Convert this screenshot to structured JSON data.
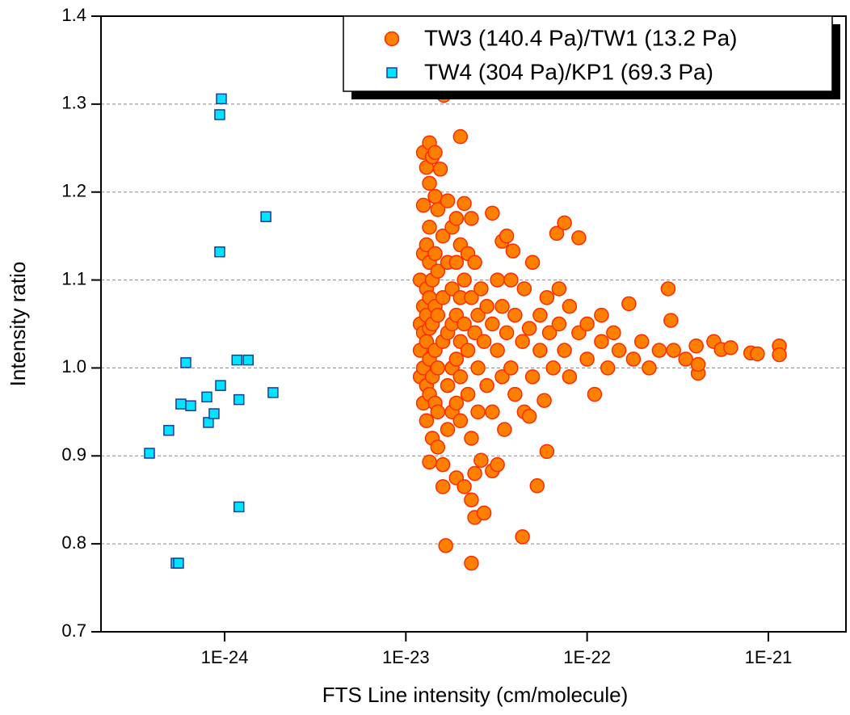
{
  "chart_data": {
    "type": "scatter",
    "xlabel": "FTS Line intensity (cm/molecule)",
    "ylabel": "Intensity ratio",
    "xscale": "log",
    "xlim": [
      2.08e-25,
      2.68e-21
    ],
    "ylim": [
      0.7,
      1.4
    ],
    "xticks": [
      {
        "value": 1e-24,
        "label": "1E-24"
      },
      {
        "value": 1e-23,
        "label": "1E-23"
      },
      {
        "value": 1e-22,
        "label": "1E-22"
      },
      {
        "value": 1e-21,
        "label": "1E-21"
      }
    ],
    "yticks": [
      0.7,
      0.8,
      0.9,
      {
        "value": 1,
        "label": "1.0"
      },
      1.1,
      1.2,
      1.3,
      1.4
    ],
    "grid": true,
    "legend": "upper right",
    "series": [
      {
        "name": "TW3 (140.4 Pa)/TW1 (13.2 Pa)",
        "color": "#ff8000",
        "edgecolor": "#ff2a00",
        "marker": "circle",
        "x": [
          1.2e-23,
          1.2e-23,
          1.2e-23,
          1.2e-23,
          1.25e-23,
          1.25e-23,
          1.25e-23,
          1.25e-23,
          1.25e-23,
          1.25e-23,
          1.25e-23,
          1.3e-23,
          1.3e-23,
          1.3e-23,
          1.3e-23,
          1.3e-23,
          1.3e-23,
          1.3e-23,
          1.35e-23,
          1.35e-23,
          1.35e-23,
          1.35e-23,
          1.35e-23,
          1.35e-23,
          1.35e-23,
          1.35e-23,
          1.35e-23,
          1.4e-23,
          1.4e-23,
          1.4e-23,
          1.4e-23,
          1.4e-23,
          1.45e-23,
          1.45e-23,
          1.45e-23,
          1.45e-23,
          1.45e-23,
          1.45e-23,
          1.5e-23,
          1.5e-23,
          1.5e-23,
          1.5e-23,
          1.5e-23,
          1.5e-23,
          1.55e-23,
          1.6e-23,
          1.6e-23,
          1.6e-23,
          1.6e-23,
          1.6e-23,
          1.62e-23,
          1.66e-23,
          1.7e-23,
          1.7e-23,
          1.7e-23,
          1.7e-23,
          1.7e-23,
          1.8e-23,
          1.8e-23,
          1.8e-23,
          1.8e-23,
          1.8e-23,
          1.9e-23,
          1.9e-23,
          1.9e-23,
          1.9e-23,
          1.9e-23,
          1.9e-23,
          2e-23,
          2e-23,
          2e-23,
          2e-23,
          2e-23,
          2e-23,
          2.1e-23,
          2.1e-23,
          2.1e-23,
          2.1e-23,
          2.2e-23,
          2.2e-23,
          2.2e-23,
          2.3e-23,
          2.3e-23,
          2.3e-23,
          2.3e-23,
          2.3e-23,
          2.4e-23,
          2.4e-23,
          2.4e-23,
          2.4e-23,
          2.5e-23,
          2.5e-23,
          2.5e-23,
          2.6e-23,
          2.6e-23,
          2.7e-23,
          2.7e-23,
          2.8e-23,
          2.8e-23,
          3e-23,
          3e-23,
          3e-23,
          3e-23,
          3.2e-23,
          3.2e-23,
          3.2e-23,
          3.4e-23,
          3.4e-23,
          3.4e-23,
          3.5e-23,
          3.6e-23,
          3.6e-23,
          3.8e-23,
          3.8e-23,
          3.9e-23,
          4e-23,
          4e-23,
          4.4e-23,
          4.4e-23,
          4.5e-23,
          4.5e-23,
          4.8e-23,
          4.8e-23,
          5e-23,
          5e-23,
          5.3e-23,
          5.5e-23,
          5.5e-23,
          5.8e-23,
          6e-23,
          6e-23,
          6.2e-23,
          6.5e-23,
          6.8e-23,
          7e-23,
          7e-23,
          7.5e-23,
          7.5e-23,
          8e-23,
          8e-23,
          9e-23,
          9e-23,
          1e-22,
          1e-22,
          1.1e-22,
          1.2e-22,
          1.2e-22,
          1.3e-22,
          1.4e-22,
          1.5e-22,
          1.7e-22,
          1.8e-22,
          2e-22,
          2.2e-22,
          2.5e-22,
          2.8e-22,
          2.9e-22,
          3e-22,
          3.5e-22,
          4e-22,
          4.1e-22,
          4.1e-22,
          5e-22,
          5.5e-22,
          6.2e-22,
          8e-22,
          8.7e-22,
          1.15e-21,
          1.15e-21
        ],
        "values": [
          1.1,
          1.05,
          1.02,
          0.99,
          1.245,
          1.185,
          1.13,
          1.07,
          1.04,
          1.0,
          0.96,
          1.228,
          1.14,
          1.09,
          1.06,
          1.03,
          0.98,
          0.94,
          1.256,
          1.21,
          1.16,
          1.12,
          1.08,
          1.045,
          1.01,
          0.97,
          0.893,
          1.24,
          1.1,
          1.05,
          0.99,
          0.92,
          1.245,
          1.195,
          1.13,
          1.07,
          1.02,
          0.96,
          1.18,
          1.11,
          1.06,
          1.0,
          0.95,
          0.91,
          1.226,
          0.865,
          0.89,
          1.15,
          1.08,
          1.03,
          1.31,
          0.798,
          1.19,
          1.12,
          1.04,
          0.98,
          0.93,
          1.16,
          1.09,
          1.05,
          1.0,
          0.95,
          1.17,
          1.12,
          1.06,
          1.01,
          0.96,
          0.875,
          1.263,
          1.14,
          1.08,
          1.03,
          0.99,
          0.94,
          0.865,
          1.187,
          1.1,
          1.05,
          1.13,
          1.02,
          0.97,
          1.17,
          0.778,
          0.85,
          1.08,
          0.92,
          0.88,
          0.83,
          1.12,
          1.04,
          1.06,
          1.0,
          0.95,
          1.09,
          0.895,
          0.835,
          1.03,
          1.07,
          0.98,
          1.176,
          1.05,
          0.883,
          0.95,
          1.1,
          1.02,
          0.89,
          1.07,
          0.99,
          1.144,
          0.93,
          1.04,
          1.15,
          1.1,
          1.0,
          1.133,
          1.06,
          0.97,
          1.03,
          0.808,
          1.09,
          0.95,
          1.045,
          0.945,
          1.12,
          0.99,
          0.866,
          1.06,
          1.02,
          0.963,
          0.905,
          1.08,
          1.04,
          1.0,
          1.153,
          1.05,
          1.09,
          1.165,
          1.02,
          1.07,
          0.99,
          1.148,
          1.04,
          1.01,
          1.05,
          0.97,
          1.06,
          1.03,
          1.0,
          1.04,
          1.02,
          1.073,
          1.01,
          1.03,
          1.0,
          1.02,
          1.09,
          1.054,
          1.02,
          1.01,
          1.025,
          0.994,
          1.004,
          1.03,
          1.021,
          1.023,
          1.017,
          1.016,
          1.025,
          1.015
        ]
      },
      {
        "name": "TW4 (304 Pa)/KP1 (69.3 Pa)",
        "color": "#00e5ff",
        "edgecolor": "#1c3c9c",
        "marker": "square",
        "x": [
          3.85e-25,
          4.92e-25,
          5.4e-25,
          5.57e-25,
          5.74e-25,
          6.11e-25,
          6.5e-25,
          7.98e-25,
          8.14e-25,
          8.75e-25,
          9.4e-25,
          9.5e-25,
          9.4e-25,
          9.6e-25,
          1.17e-24,
          1.2e-24,
          1.2e-24,
          1.35e-24,
          1.69e-24,
          1.85e-24
        ],
        "values": [
          0.903,
          0.929,
          0.778,
          0.778,
          0.959,
          1.006,
          0.957,
          0.967,
          0.938,
          0.948,
          1.288,
          0.98,
          1.132,
          1.306,
          1.009,
          0.964,
          0.842,
          1.009,
          1.172,
          0.972
        ]
      }
    ]
  }
}
